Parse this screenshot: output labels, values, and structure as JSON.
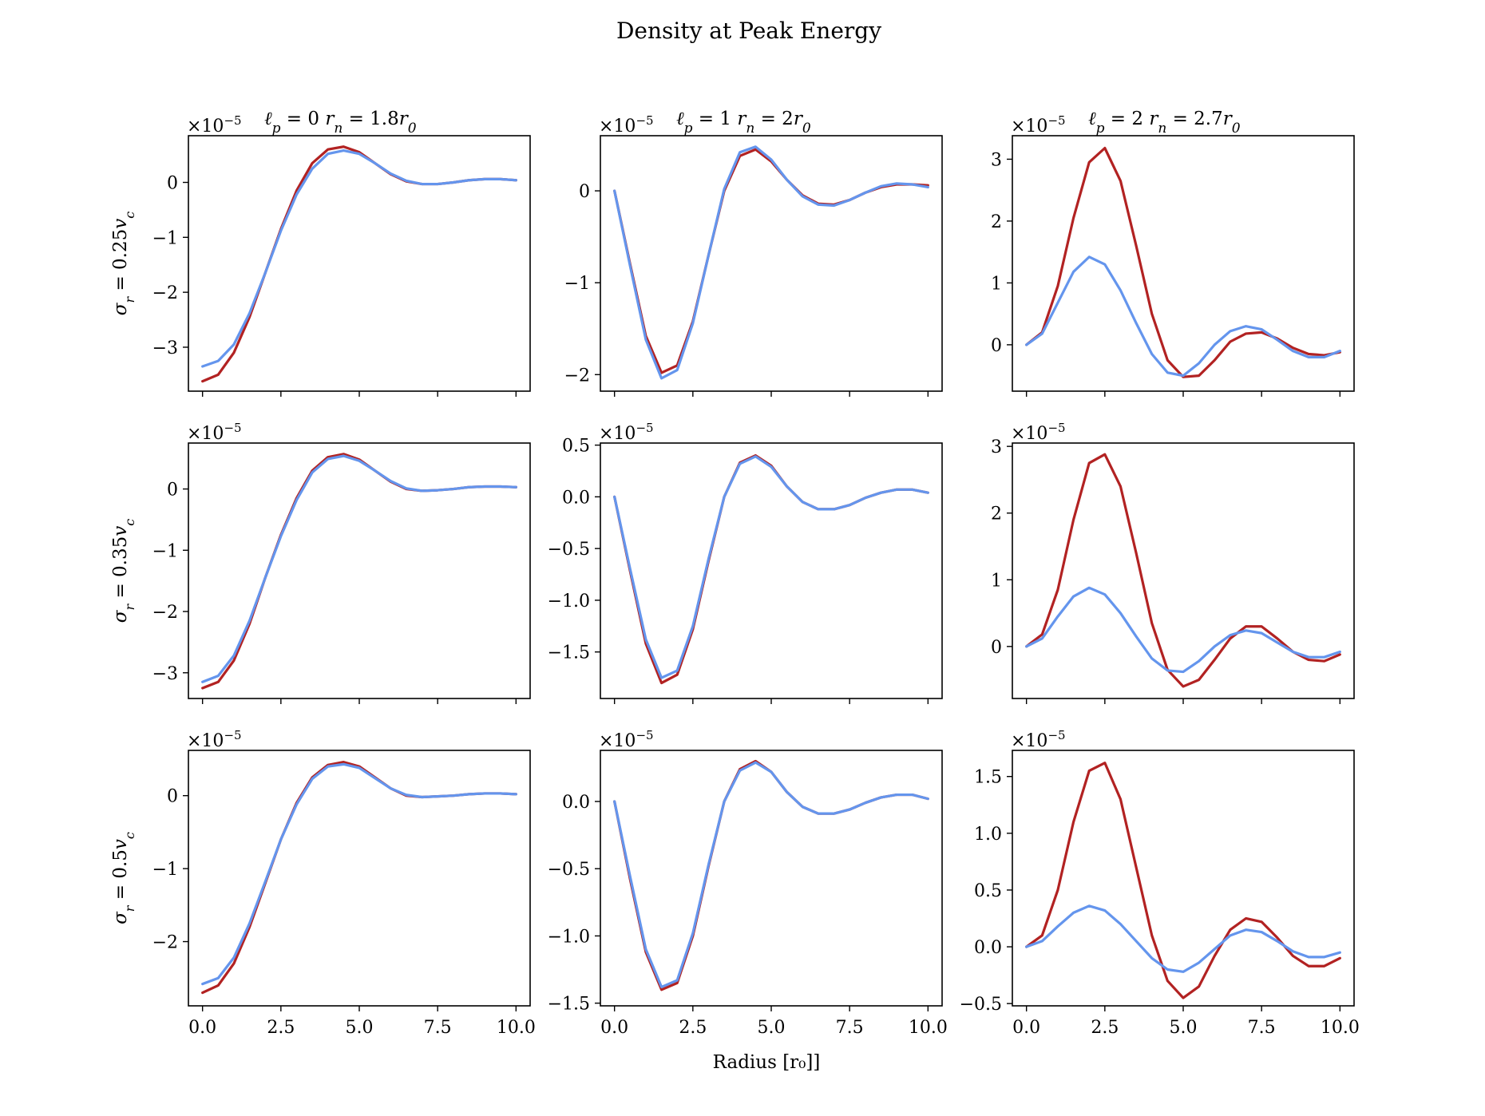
{
  "figure": {
    "title": "Density at Peak Energy",
    "xlabel": "Radius [r₀]]",
    "colors": {
      "red": "#b22222",
      "blue": "#6495ed"
    }
  },
  "chart_data": [
    {
      "type": "line",
      "row": 0,
      "col": 0,
      "title": "ℓp = 0 rn = 1.8r0",
      "title_parts": [
        "ℓ",
        "p",
        " = 0 ",
        "r",
        "n",
        " = 1.8",
        "r",
        "0"
      ],
      "ylabel_parts": [
        "σ",
        "r",
        " = 0.25",
        "v",
        "c"
      ],
      "ylabel": "σr = 0.25vc",
      "offset_text": "×10−5",
      "xlim": [
        -0.45,
        10.45
      ],
      "ylim": [
        -3.8,
        0.85
      ],
      "xticks": [
        0,
        2.5,
        5,
        7.5,
        10
      ],
      "xtick_labels": [],
      "yticks": [
        -3,
        -2,
        -1,
        0
      ],
      "ytick_labels": [
        "−3",
        "−2",
        "−1",
        "0"
      ],
      "x": [
        0,
        0.5,
        1,
        1.5,
        2,
        2.5,
        3,
        3.5,
        4,
        4.5,
        5,
        5.5,
        6,
        6.5,
        7,
        7.5,
        8,
        8.5,
        9,
        9.5,
        10
      ],
      "series": [
        {
          "color": "red",
          "values": [
            -3.62,
            -3.5,
            -3.1,
            -2.45,
            -1.65,
            -0.85,
            -0.15,
            0.35,
            0.6,
            0.65,
            0.55,
            0.35,
            0.15,
            0.02,
            -0.03,
            -0.03,
            0.0,
            0.04,
            0.06,
            0.06,
            0.04
          ]
        },
        {
          "color": "blue",
          "values": [
            -3.35,
            -3.25,
            -2.95,
            -2.38,
            -1.65,
            -0.88,
            -0.22,
            0.25,
            0.52,
            0.58,
            0.52,
            0.35,
            0.16,
            0.03,
            -0.03,
            -0.03,
            0.0,
            0.04,
            0.06,
            0.06,
            0.04
          ]
        }
      ]
    },
    {
      "type": "line",
      "row": 0,
      "col": 1,
      "title": "ℓp = 1 rn = 2r0",
      "title_parts": [
        "ℓ",
        "p",
        " = 1 ",
        "r",
        "n",
        " = 2",
        "r",
        "0"
      ],
      "offset_text": "×10−5",
      "xlim": [
        -0.45,
        10.45
      ],
      "ylim": [
        -2.18,
        0.6
      ],
      "xticks": [
        0,
        2.5,
        5,
        7.5,
        10
      ],
      "xtick_labels": [],
      "yticks": [
        -2,
        -1,
        0
      ],
      "ytick_labels": [
        "−2",
        "−1",
        "0"
      ],
      "x": [
        0,
        0.5,
        1,
        1.5,
        2,
        2.5,
        3,
        3.5,
        4,
        4.5,
        5,
        5.5,
        6,
        6.5,
        7,
        7.5,
        8,
        8.5,
        9,
        9.5,
        10
      ],
      "series": [
        {
          "color": "red",
          "values": [
            0.0,
            -0.8,
            -1.58,
            -1.98,
            -1.9,
            -1.42,
            -0.7,
            0.0,
            0.38,
            0.45,
            0.32,
            0.12,
            -0.05,
            -0.14,
            -0.15,
            -0.1,
            -0.02,
            0.04,
            0.07,
            0.07,
            0.06
          ]
        },
        {
          "color": "blue",
          "values": [
            0.0,
            -0.82,
            -1.62,
            -2.04,
            -1.95,
            -1.44,
            -0.7,
            0.02,
            0.42,
            0.48,
            0.34,
            0.12,
            -0.06,
            -0.15,
            -0.16,
            -0.1,
            -0.02,
            0.05,
            0.08,
            0.07,
            0.04
          ]
        }
      ]
    },
    {
      "type": "line",
      "row": 0,
      "col": 2,
      "title": "ℓp = 2 rn = 2.7r0",
      "title_parts": [
        "ℓ",
        "p",
        " = 2 ",
        "r",
        "n",
        " = 2.7",
        "r",
        "0"
      ],
      "offset_text": "×10−5",
      "xlim": [
        -0.45,
        10.45
      ],
      "ylim": [
        -0.75,
        3.38
      ],
      "xticks": [
        0,
        2.5,
        5,
        7.5,
        10
      ],
      "xtick_labels": [],
      "yticks": [
        0,
        1,
        2,
        3
      ],
      "ytick_labels": [
        "0",
        "1",
        "2",
        "3"
      ],
      "x": [
        0,
        0.5,
        1,
        1.5,
        2,
        2.5,
        3,
        3.5,
        4,
        4.5,
        5,
        5.5,
        6,
        6.5,
        7,
        7.5,
        8,
        8.5,
        9,
        9.5,
        10
      ],
      "series": [
        {
          "color": "red",
          "values": [
            0.0,
            0.2,
            0.95,
            2.05,
            2.95,
            3.18,
            2.65,
            1.6,
            0.5,
            -0.25,
            -0.52,
            -0.5,
            -0.25,
            0.05,
            0.18,
            0.2,
            0.1,
            -0.05,
            -0.15,
            -0.17,
            -0.12
          ]
        },
        {
          "color": "blue",
          "values": [
            0.0,
            0.18,
            0.68,
            1.18,
            1.42,
            1.3,
            0.88,
            0.35,
            -0.15,
            -0.45,
            -0.5,
            -0.3,
            0.0,
            0.22,
            0.3,
            0.25,
            0.08,
            -0.1,
            -0.2,
            -0.2,
            -0.1
          ]
        }
      ]
    },
    {
      "type": "line",
      "row": 1,
      "col": 0,
      "ylabel_parts": [
        "σ",
        "r",
        " = 0.35",
        "v",
        "c"
      ],
      "ylabel": "σr = 0.35vc",
      "offset_text": "×10−5",
      "xlim": [
        -0.45,
        10.45
      ],
      "ylim": [
        -3.42,
        0.75
      ],
      "xticks": [
        0,
        2.5,
        5,
        7.5,
        10
      ],
      "xtick_labels": [],
      "yticks": [
        -3,
        -2,
        -1,
        0
      ],
      "ytick_labels": [
        "−3",
        "−2",
        "−1",
        "0"
      ],
      "x": [
        0,
        0.5,
        1,
        1.5,
        2,
        2.5,
        3,
        3.5,
        4,
        4.5,
        5,
        5.5,
        6,
        6.5,
        7,
        7.5,
        8,
        8.5,
        9,
        9.5,
        10
      ],
      "series": [
        {
          "color": "red",
          "values": [
            -3.25,
            -3.15,
            -2.8,
            -2.2,
            -1.45,
            -0.75,
            -0.15,
            0.3,
            0.52,
            0.57,
            0.48,
            0.3,
            0.12,
            0.0,
            -0.03,
            -0.02,
            0.0,
            0.03,
            0.04,
            0.04,
            0.03
          ]
        },
        {
          "color": "blue",
          "values": [
            -3.15,
            -3.05,
            -2.72,
            -2.15,
            -1.45,
            -0.77,
            -0.18,
            0.27,
            0.49,
            0.54,
            0.46,
            0.3,
            0.13,
            0.01,
            -0.03,
            -0.02,
            0.0,
            0.03,
            0.04,
            0.04,
            0.03
          ]
        }
      ]
    },
    {
      "type": "line",
      "row": 1,
      "col": 1,
      "offset_text": "×10−5",
      "xlim": [
        -0.45,
        10.45
      ],
      "ylim": [
        -1.95,
        0.52
      ],
      "xticks": [
        0,
        2.5,
        5,
        7.5,
        10
      ],
      "xtick_labels": [],
      "yticks": [
        -1.5,
        -1.0,
        -0.5,
        0.0,
        0.5
      ],
      "ytick_labels": [
        "−1.5",
        "−1.0",
        "−0.5",
        "0.0",
        "0.5"
      ],
      "x": [
        0,
        0.5,
        1,
        1.5,
        2,
        2.5,
        3,
        3.5,
        4,
        4.5,
        5,
        5.5,
        6,
        6.5,
        7,
        7.5,
        8,
        8.5,
        9,
        9.5,
        10
      ],
      "series": [
        {
          "color": "red",
          "values": [
            0.0,
            -0.72,
            -1.42,
            -1.8,
            -1.72,
            -1.28,
            -0.62,
            0.0,
            0.33,
            0.4,
            0.3,
            0.1,
            -0.05,
            -0.12,
            -0.12,
            -0.08,
            -0.01,
            0.04,
            0.07,
            0.07,
            0.04
          ]
        },
        {
          "color": "blue",
          "values": [
            0.0,
            -0.7,
            -1.38,
            -1.75,
            -1.68,
            -1.25,
            -0.6,
            0.0,
            0.32,
            0.39,
            0.29,
            0.1,
            -0.05,
            -0.12,
            -0.12,
            -0.08,
            -0.01,
            0.04,
            0.07,
            0.07,
            0.04
          ]
        }
      ]
    },
    {
      "type": "line",
      "row": 1,
      "col": 2,
      "offset_text": "×10−5",
      "xlim": [
        -0.45,
        10.45
      ],
      "ylim": [
        -0.78,
        3.05
      ],
      "xticks": [
        0,
        2.5,
        5,
        7.5,
        10
      ],
      "xtick_labels": [],
      "yticks": [
        0,
        1,
        2,
        3
      ],
      "ytick_labels": [
        "0",
        "1",
        "2",
        "3"
      ],
      "x": [
        0,
        0.5,
        1,
        1.5,
        2,
        2.5,
        3,
        3.5,
        4,
        4.5,
        5,
        5.5,
        6,
        6.5,
        7,
        7.5,
        8,
        8.5,
        9,
        9.5,
        10
      ],
      "series": [
        {
          "color": "red",
          "values": [
            0.0,
            0.18,
            0.85,
            1.9,
            2.75,
            2.88,
            2.4,
            1.4,
            0.35,
            -0.35,
            -0.6,
            -0.5,
            -0.2,
            0.12,
            0.3,
            0.3,
            0.12,
            -0.08,
            -0.2,
            -0.22,
            -0.12
          ]
        },
        {
          "color": "blue",
          "values": [
            0.0,
            0.12,
            0.45,
            0.75,
            0.88,
            0.78,
            0.5,
            0.15,
            -0.18,
            -0.36,
            -0.38,
            -0.22,
            0.0,
            0.17,
            0.24,
            0.2,
            0.06,
            -0.08,
            -0.16,
            -0.16,
            -0.08
          ]
        }
      ]
    },
    {
      "type": "line",
      "row": 2,
      "col": 0,
      "ylabel_parts": [
        "σ",
        "r",
        " = 0.5",
        "v",
        "c"
      ],
      "ylabel": "σr = 0.5vc",
      "offset_text": "×10−5",
      "xlim": [
        -0.45,
        10.45
      ],
      "ylim": [
        -2.88,
        0.62
      ],
      "xticks": [
        0,
        2.5,
        5,
        7.5,
        10
      ],
      "xtick_labels": [
        "0.0",
        "2.5",
        "5.0",
        "7.5",
        "10.0"
      ],
      "yticks": [
        -2,
        -1,
        0
      ],
      "ytick_labels": [
        "−2",
        "−1",
        "0"
      ],
      "x": [
        0,
        0.5,
        1,
        1.5,
        2,
        2.5,
        3,
        3.5,
        4,
        4.5,
        5,
        5.5,
        6,
        6.5,
        7,
        7.5,
        8,
        8.5,
        9,
        9.5,
        10
      ],
      "series": [
        {
          "color": "red",
          "values": [
            -2.7,
            -2.6,
            -2.3,
            -1.8,
            -1.2,
            -0.6,
            -0.1,
            0.25,
            0.42,
            0.46,
            0.4,
            0.25,
            0.1,
            0.0,
            -0.02,
            -0.01,
            0.0,
            0.02,
            0.03,
            0.03,
            0.02
          ]
        },
        {
          "color": "blue",
          "values": [
            -2.58,
            -2.5,
            -2.22,
            -1.75,
            -1.18,
            -0.6,
            -0.12,
            0.23,
            0.4,
            0.43,
            0.38,
            0.24,
            0.1,
            0.01,
            -0.02,
            -0.01,
            0.0,
            0.02,
            0.03,
            0.03,
            0.02
          ]
        }
      ]
    },
    {
      "type": "line",
      "row": 2,
      "col": 1,
      "offset_text": "×10−5",
      "xlim": [
        -0.45,
        10.45
      ],
      "ylim": [
        -1.52,
        0.38
      ],
      "xticks": [
        0,
        2.5,
        5,
        7.5,
        10
      ],
      "xtick_labels": [
        "0.0",
        "2.5",
        "5.0",
        "7.5",
        "10.0"
      ],
      "yticks": [
        -1.5,
        -1.0,
        -0.5,
        0.0
      ],
      "ytick_labels": [
        "−1.5",
        "−1.0",
        "−0.5",
        "0.0"
      ],
      "x": [
        0,
        0.5,
        1,
        1.5,
        2,
        2.5,
        3,
        3.5,
        4,
        4.5,
        5,
        5.5,
        6,
        6.5,
        7,
        7.5,
        8,
        8.5,
        9,
        9.5,
        10
      ],
      "series": [
        {
          "color": "red",
          "values": [
            0.0,
            -0.58,
            -1.12,
            -1.4,
            -1.35,
            -1.0,
            -0.48,
            0.0,
            0.24,
            0.3,
            0.22,
            0.07,
            -0.04,
            -0.09,
            -0.09,
            -0.06,
            -0.01,
            0.03,
            0.05,
            0.05,
            0.02
          ]
        },
        {
          "color": "blue",
          "values": [
            0.0,
            -0.56,
            -1.1,
            -1.38,
            -1.33,
            -0.98,
            -0.47,
            0.0,
            0.23,
            0.29,
            0.22,
            0.07,
            -0.04,
            -0.09,
            -0.09,
            -0.06,
            -0.01,
            0.03,
            0.05,
            0.05,
            0.02
          ]
        }
      ]
    },
    {
      "type": "line",
      "row": 2,
      "col": 2,
      "offset_text": "×10−5",
      "xlim": [
        -0.45,
        10.45
      ],
      "ylim": [
        -0.52,
        1.73
      ],
      "xticks": [
        0,
        2.5,
        5,
        7.5,
        10
      ],
      "xtick_labels": [
        "0.0",
        "2.5",
        "5.0",
        "7.5",
        "10.0"
      ],
      "yticks": [
        -0.5,
        0.0,
        0.5,
        1.0,
        1.5
      ],
      "ytick_labels": [
        "−0.5",
        "0.0",
        "0.5",
        "1.0",
        "1.5"
      ],
      "x": [
        0,
        0.5,
        1,
        1.5,
        2,
        2.5,
        3,
        3.5,
        4,
        4.5,
        5,
        5.5,
        6,
        6.5,
        7,
        7.5,
        8,
        8.5,
        9,
        9.5,
        10
      ],
      "series": [
        {
          "color": "red",
          "values": [
            0.0,
            0.1,
            0.5,
            1.1,
            1.55,
            1.62,
            1.3,
            0.7,
            0.1,
            -0.3,
            -0.45,
            -0.35,
            -0.08,
            0.15,
            0.25,
            0.22,
            0.08,
            -0.08,
            -0.17,
            -0.17,
            -0.1
          ]
        },
        {
          "color": "blue",
          "values": [
            0.0,
            0.05,
            0.18,
            0.3,
            0.36,
            0.32,
            0.2,
            0.05,
            -0.1,
            -0.2,
            -0.22,
            -0.14,
            -0.02,
            0.1,
            0.15,
            0.13,
            0.05,
            -0.04,
            -0.09,
            -0.09,
            -0.05
          ]
        }
      ]
    }
  ]
}
